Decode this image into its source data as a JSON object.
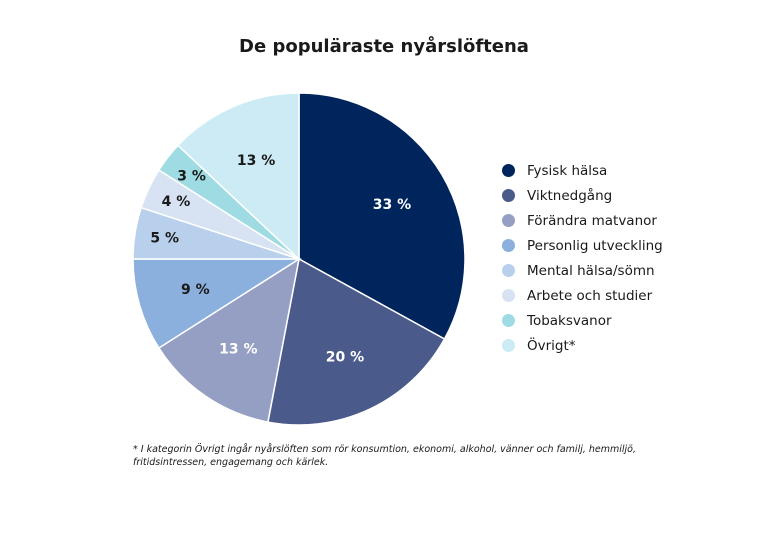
{
  "chart_data": {
    "type": "pie",
    "title": "De populäraste nyårslöftena",
    "categories": [
      "Fysisk hälsa",
      "Viktnedgång",
      "Förändra matvanor",
      "Personlig utveckling",
      "Mental hälsa/sömn",
      "Arbete och studier",
      "Tobaksvanor",
      "Övrigt*"
    ],
    "values": [
      33,
      20,
      13,
      9,
      5,
      4,
      3,
      13
    ],
    "data_labels": [
      "33 %",
      "20 %",
      "13 %",
      "9 %",
      "5 %",
      "4 %",
      "3 %",
      "13 %"
    ],
    "colors": [
      "#00245c",
      "#4a5a8a",
      "#959fc3",
      "#8cb0dd",
      "#b9d0ec",
      "#d7e3f3",
      "#9fdbe3",
      "#cdebf4"
    ],
    "label_colors": [
      "#ffffff",
      "#ffffff",
      "#ffffff",
      "#1a1a1a",
      "#1a1a1a",
      "#1a1a1a",
      "#1a1a1a",
      "#1a1a1a"
    ],
    "legend_position": "right"
  },
  "footnote": "* I kategorin Övrigt ingår nyårslöften som rör konsumtion, ekonomi, alkohol, vänner och familj, hemmiljö, fritidsintressen, engagemang och kärlek."
}
